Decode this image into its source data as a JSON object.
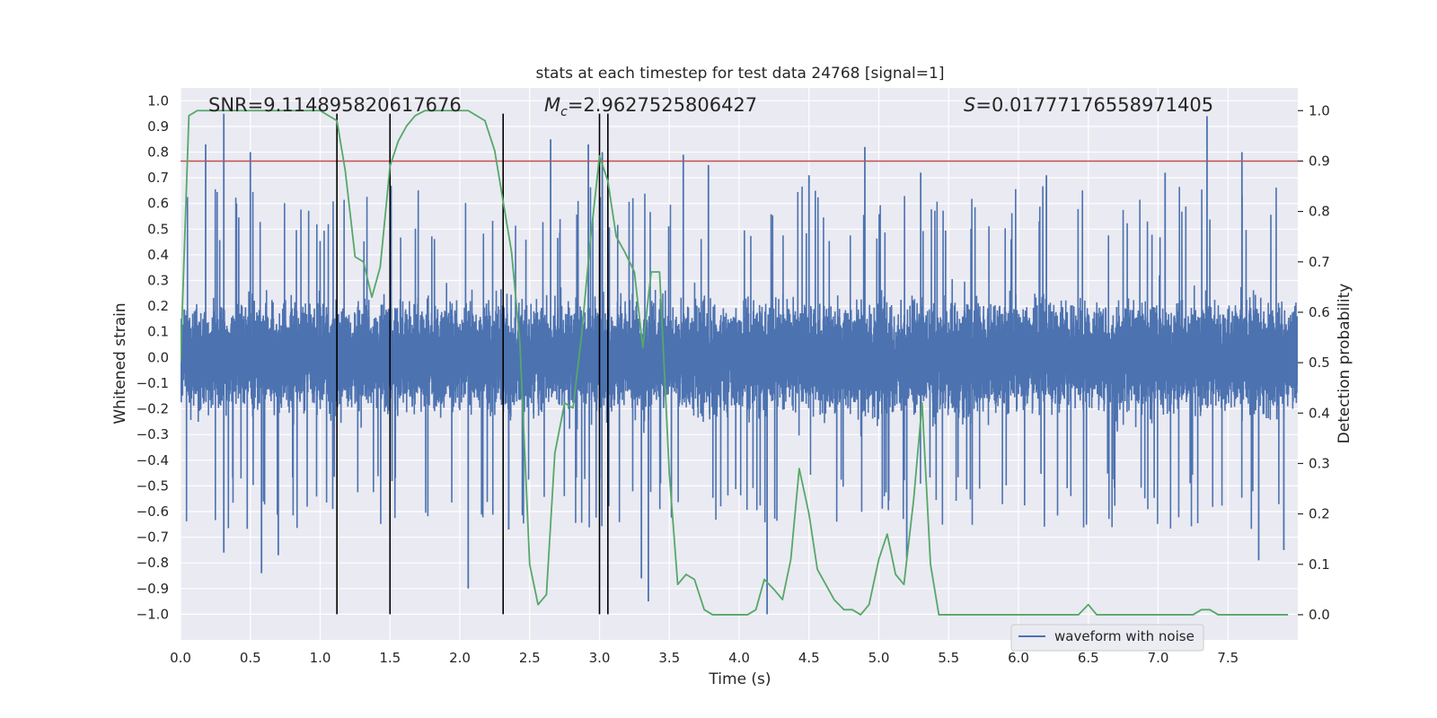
{
  "chart_data": {
    "type": "line",
    "title": "stats at each timestep for test data 24768 [signal=1]",
    "xlabel": "Time (s)",
    "ylabel": "Whitened strain",
    "y2label": "Detection probability",
    "xlim": [
      0.0,
      8.0
    ],
    "ylim": [
      -1.1,
      1.05
    ],
    "y2lim": [
      -0.05,
      1.045
    ],
    "x_ticks": [
      0.0,
      0.5,
      1.0,
      1.5,
      2.0,
      2.5,
      3.0,
      3.5,
      4.0,
      4.5,
      5.0,
      5.5,
      6.0,
      6.5,
      7.0,
      7.5
    ],
    "x_tick_labels": [
      "0.0",
      "0.5",
      "1.0",
      "1.5",
      "2.0",
      "2.5",
      "3.0",
      "3.5",
      "4.0",
      "4.5",
      "5.0",
      "5.5",
      "6.0",
      "6.5",
      "7.0",
      "7.5"
    ],
    "y_ticks": [
      1.0,
      0.9,
      0.8,
      0.7,
      0.6,
      0.5,
      0.4,
      0.3,
      0.2,
      0.1,
      0.0,
      -0.1,
      -0.2,
      -0.3,
      -0.4,
      -0.5,
      -0.6,
      -0.7,
      -0.8,
      -0.9,
      -1.0
    ],
    "y_tick_labels": [
      "1.0",
      "0.9",
      "0.8",
      "0.7",
      "0.6",
      "0.5",
      "0.4",
      "0.3",
      "0.2",
      "0.1",
      "0.0",
      "−0.1",
      "−0.2",
      "−0.3",
      "−0.4",
      "−0.5",
      "−0.6",
      "−0.7",
      "−0.8",
      "−0.9",
      "−1.0"
    ],
    "y2_ticks": [
      1.0,
      0.9,
      0.8,
      0.7,
      0.6,
      0.5,
      0.4,
      0.3,
      0.2,
      0.1,
      0.0
    ],
    "y2_tick_labels": [
      "1.0",
      "0.9",
      "0.8",
      "0.7",
      "0.6",
      "0.5",
      "0.4",
      "0.3",
      "0.2",
      "0.1",
      "0.0"
    ],
    "grid": true,
    "legend_position": "lower-right",
    "annotations": {
      "snr": "SNR=9.114895820617676",
      "mc_symbol": "M",
      "mc_subscript": "c",
      "mc_value": "=2.9627525806427",
      "s_symbol": "S",
      "s_value": "=0.01777176558971405"
    },
    "threshold": {
      "axis": "right",
      "value": 0.9,
      "color": "#c44e52"
    },
    "vertical_markers": {
      "x": [
        1.12,
        1.5,
        2.31,
        3.0,
        3.06
      ],
      "ymin": -1.0,
      "ymax": 0.95,
      "color": "#000000"
    },
    "series": [
      {
        "name": "waveform with noise",
        "axis": "left",
        "color": "#4c72b0",
        "kind": "noise-waveform",
        "sample_rate": 2048,
        "typical_amplitude": 0.4,
        "spike_peaks": [
          {
            "x": 0.18,
            "y": 0.83
          },
          {
            "x": 0.31,
            "y": 0.95
          },
          {
            "x": 0.31,
            "y": -0.76
          },
          {
            "x": 0.5,
            "y": 0.8
          },
          {
            "x": 0.58,
            "y": -0.84
          },
          {
            "x": 0.7,
            "y": -0.77
          },
          {
            "x": 2.06,
            "y": -0.9
          },
          {
            "x": 2.35,
            "y": -0.67
          },
          {
            "x": 2.65,
            "y": 0.85
          },
          {
            "x": 2.92,
            "y": 0.83
          },
          {
            "x": 3.02,
            "y": 0.8
          },
          {
            "x": 3.3,
            "y": -0.86
          },
          {
            "x": 3.35,
            "y": -0.95
          },
          {
            "x": 3.6,
            "y": 0.79
          },
          {
            "x": 3.78,
            "y": 0.75
          },
          {
            "x": 4.2,
            "y": -1.0
          },
          {
            "x": 4.5,
            "y": 0.71
          },
          {
            "x": 4.9,
            "y": 0.82
          },
          {
            "x": 5.3,
            "y": 0.72
          },
          {
            "x": 5.2,
            "y": -0.78
          },
          {
            "x": 7.35,
            "y": 0.94
          },
          {
            "x": 7.6,
            "y": 0.8
          },
          {
            "x": 7.72,
            "y": -0.79
          },
          {
            "x": 7.9,
            "y": -0.75
          },
          {
            "x": 7.05,
            "y": 0.72
          },
          {
            "x": 6.2,
            "y": 0.71
          }
        ]
      },
      {
        "axis": "right",
        "color": "#55a868",
        "kind": "line",
        "x": [
          0.0,
          0.06,
          0.12,
          0.25,
          0.45,
          0.65,
          0.85,
          1.0,
          1.06,
          1.12,
          1.18,
          1.25,
          1.31,
          1.37,
          1.43,
          1.5,
          1.56,
          1.62,
          1.68,
          1.75,
          1.81,
          1.87,
          1.93,
          2.0,
          2.06,
          2.12,
          2.18,
          2.25,
          2.31,
          2.37,
          2.43,
          2.5,
          2.56,
          2.62,
          2.68,
          2.75,
          2.81,
          2.87,
          2.93,
          3.0,
          3.06,
          3.12,
          3.18,
          3.25,
          3.31,
          3.37,
          3.43,
          3.5,
          3.56,
          3.62,
          3.68,
          3.75,
          3.81,
          3.87,
          3.93,
          4.0,
          4.06,
          4.12,
          4.18,
          4.25,
          4.31,
          4.37,
          4.43,
          4.5,
          4.56,
          4.62,
          4.68,
          4.75,
          4.81,
          4.87,
          4.93,
          5.0,
          5.06,
          5.12,
          5.18,
          5.25,
          5.31,
          5.37,
          5.43,
          5.5,
          5.56,
          5.62,
          5.68,
          5.75,
          5.81,
          5.87,
          5.93,
          6.0,
          6.06,
          6.12,
          6.18,
          6.25,
          6.31,
          6.37,
          6.43,
          6.5,
          6.56,
          6.62,
          6.68,
          6.75,
          6.81,
          6.87,
          6.93,
          7.0,
          7.06,
          7.12,
          7.18,
          7.25,
          7.31,
          7.37,
          7.43,
          7.5,
          7.56,
          7.62,
          7.68,
          7.75,
          7.81,
          7.87,
          7.93
        ],
        "y": [
          0.5,
          0.99,
          1.0,
          1.0,
          1.0,
          1.0,
          1.0,
          1.0,
          0.99,
          0.98,
          0.88,
          0.71,
          0.7,
          0.63,
          0.69,
          0.89,
          0.94,
          0.97,
          0.99,
          1.0,
          1.0,
          1.0,
          1.0,
          1.0,
          1.0,
          0.99,
          0.98,
          0.92,
          0.82,
          0.72,
          0.54,
          0.1,
          0.02,
          0.04,
          0.32,
          0.42,
          0.41,
          0.55,
          0.73,
          0.91,
          0.86,
          0.75,
          0.72,
          0.68,
          0.53,
          0.68,
          0.68,
          0.28,
          0.06,
          0.08,
          0.07,
          0.01,
          0.0,
          0.0,
          0.0,
          0.0,
          0.0,
          0.01,
          0.07,
          0.05,
          0.03,
          0.11,
          0.29,
          0.2,
          0.09,
          0.06,
          0.03,
          0.01,
          0.01,
          0.0,
          0.02,
          0.11,
          0.16,
          0.08,
          0.06,
          0.23,
          0.42,
          0.1,
          0.0,
          0.0,
          0.0,
          0.0,
          0.0,
          0.0,
          0.0,
          0.0,
          0.0,
          0.0,
          0.0,
          0.0,
          0.0,
          0.0,
          0.0,
          0.0,
          0.0,
          0.02,
          0.0,
          0.0,
          0.0,
          0.0,
          0.0,
          0.0,
          0.0,
          0.0,
          0.0,
          0.0,
          0.0,
          0.0,
          0.01,
          0.01,
          0.0,
          0.0,
          0.0,
          0.0,
          0.0,
          0.0,
          0.0,
          0.0,
          0.0
        ]
      }
    ]
  }
}
